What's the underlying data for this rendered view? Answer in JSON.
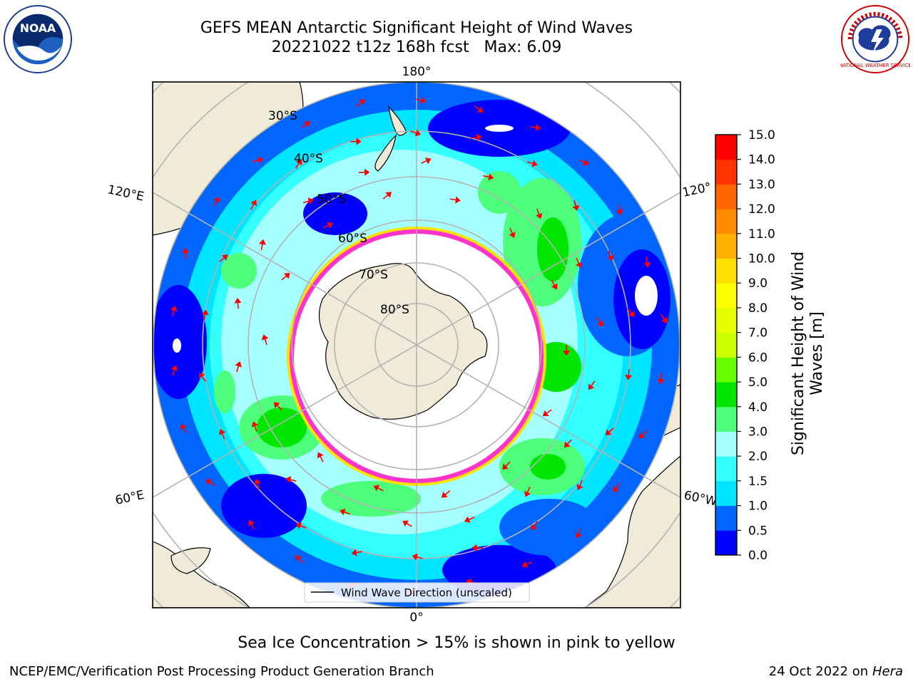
{
  "header": {
    "title_line1": "GEFS MEAN Antarctic Significant Height of Wind Waves",
    "title_line2": "20221022 t12z 168h fcst   Max: 6.09"
  },
  "logos": {
    "left": "noaa-logo",
    "right": "nws-logo",
    "left_text": "NOAA",
    "right_text": "NATIONAL WEATHER SERVICE"
  },
  "map": {
    "projection": "south polar stereographic",
    "longitude_labels": {
      "top": "180°",
      "bottom": "0°",
      "upper_left": "120°E",
      "lower_left": "60°E",
      "upper_right": "120°",
      "lower_right": "60°W"
    },
    "latitude_labels": [
      "30°S",
      "40°S",
      "50°S",
      "60°S",
      "70°S",
      "80°S"
    ],
    "legend": "Wind Wave Direction (unscaled)",
    "colors": {
      "land": "#efebd8",
      "ocean_low": "#0000ff",
      "ice_edge": "#ff33cc",
      "arrow": "#ff0000"
    }
  },
  "colorbar": {
    "label_line1": "Significant Height of Wind",
    "label_line2": "Waves [m]",
    "ticks": [
      "0.0",
      "0.5",
      "1.0",
      "1.5",
      "2.0",
      "3.0",
      "4.0",
      "5.0",
      "6.0",
      "7.0",
      "8.0",
      "9.0",
      "10.0",
      "11.0",
      "12.0",
      "13.0",
      "14.0",
      "15.0"
    ],
    "colors": [
      "#0000ff",
      "#0066ff",
      "#00e5ff",
      "#33ffff",
      "#a6ffff",
      "#4dff7a",
      "#00e600",
      "#66ff00",
      "#ccff00",
      "#e6ff00",
      "#ffff00",
      "#ffe000",
      "#ffb300",
      "#ff8c00",
      "#ff6600",
      "#ff3300",
      "#ff0000"
    ]
  },
  "footer": {
    "caption": "Sea Ice Concentration > 15% is shown in pink to yellow",
    "left": "NCEP/EMC/Verification Post Processing Product Generation Branch",
    "right_date": "24 Oct 2022 on",
    "right_host": "Hera"
  }
}
